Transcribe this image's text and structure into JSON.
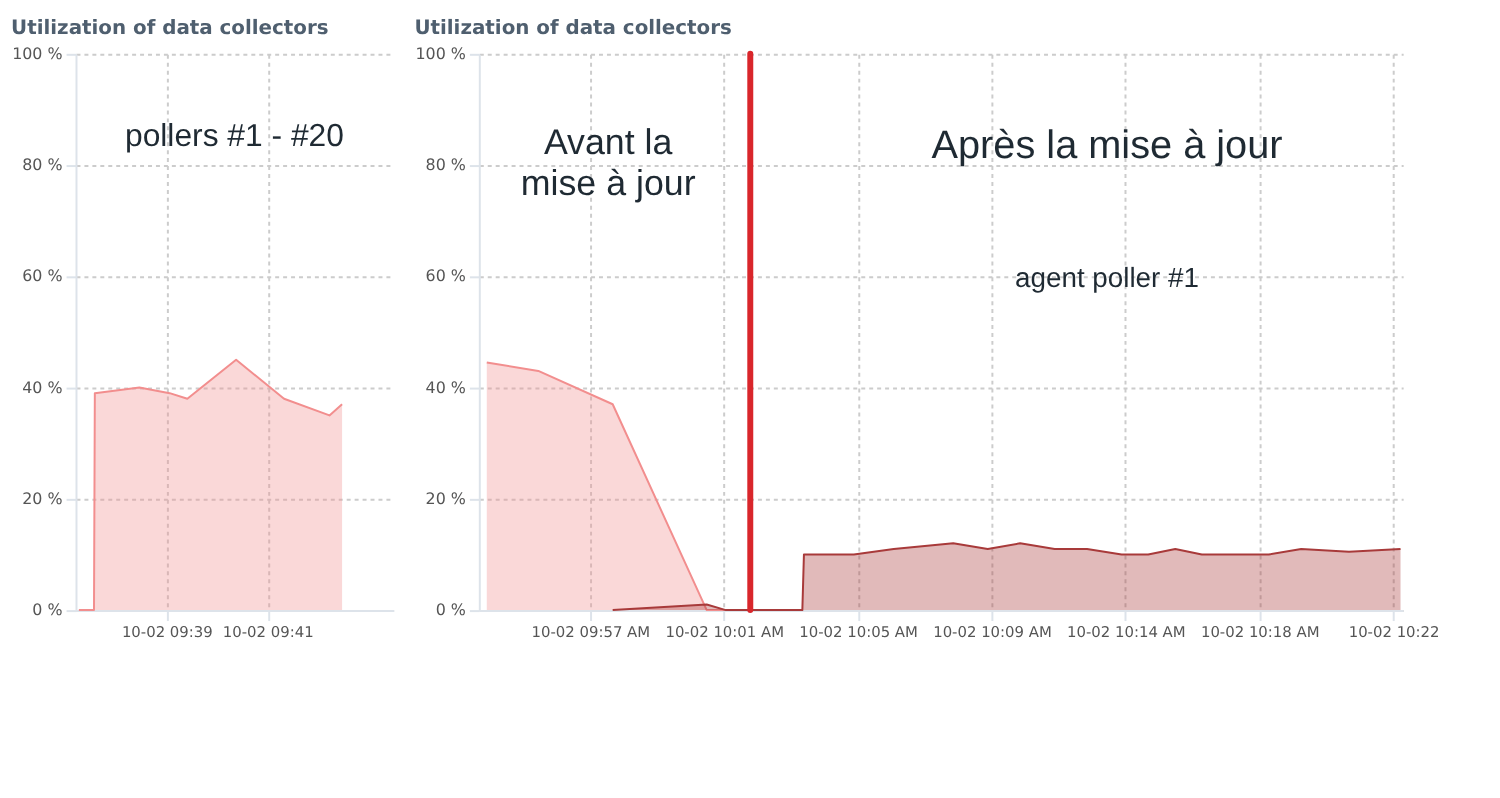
{
  "chart_data": [
    {
      "type": "area",
      "title": "Utilization of data collectors",
      "annotations": [
        "pollers #1 - #20"
      ],
      "grid": true,
      "xlim": [
        "--10-02T09:37:12",
        "--10-02T09:43:30"
      ],
      "xticks": [
        {
          "value": "--10-02T09:39",
          "label": "10-02 09:39"
        },
        {
          "value": "--10-02T09:41",
          "label": "10-02 09:41"
        }
      ],
      "ylim": [
        0,
        100
      ],
      "yticks": [
        {
          "value": 0,
          "label": "0 %"
        },
        {
          "value": 20,
          "label": "20 %"
        },
        {
          "value": 40,
          "label": "40 %"
        },
        {
          "value": 60,
          "label": "60 %"
        },
        {
          "value": 80,
          "label": "80 %"
        },
        {
          "value": 100,
          "label": "100 %"
        }
      ],
      "series": [
        {
          "color": "#f28e8e",
          "x": [
            "--10-02T09:37:16",
            "--10-02T09:37:34",
            "--10-02T09:37:35",
            "--10-02T09:38:28",
            "--10-02T09:39:04",
            "--10-02T09:39:25",
            "--10-02T09:40:23",
            "--10-02T09:41:20",
            "--10-02T09:42:14",
            "--10-02T09:42:29"
          ],
          "values": [
            0,
            0,
            39,
            40,
            39,
            38,
            45,
            38,
            35,
            37
          ]
        }
      ]
    },
    {
      "type": "area",
      "title": "Utilization of data collectors",
      "annotations": [
        "Avant la\nmise à jour",
        "Après la mise à jour",
        "agent poller #1"
      ],
      "grid": true,
      "xlim": [
        "--10-02T09:53:31",
        "--10-02T10:22:30"
      ],
      "xticks": [
        {
          "value": "--10-02T09:57",
          "label": "10-02 09:57 AM"
        },
        {
          "value": "--10-02T10:01:12",
          "label": "10-02 10:01 AM"
        },
        {
          "value": "--10-02T10:05:24",
          "label": "10-02 10:05 AM"
        },
        {
          "value": "--10-02T10:09:36",
          "label": "10-02 10:09 AM"
        },
        {
          "value": "--10-02T10:13:48",
          "label": "10-02 10:14 AM"
        },
        {
          "value": "--10-02T10:18",
          "label": "10-02 10:18 AM"
        },
        {
          "value": "--10-02T10:22:12",
          "label": "10-02 10:22"
        }
      ],
      "ylim": [
        0,
        100
      ],
      "yticks": [
        {
          "value": 0,
          "label": "0 %"
        },
        {
          "value": 20,
          "label": "20 %"
        },
        {
          "value": 40,
          "label": "40 %"
        },
        {
          "value": 60,
          "label": "60 %"
        },
        {
          "value": 80,
          "label": "80 %"
        },
        {
          "value": 100,
          "label": "100 %"
        }
      ],
      "ref_lines": [
        {
          "axis": "x",
          "value": "--10-02T10:02:02",
          "color": "#d9262b"
        }
      ],
      "series": [
        {
          "color": "#f28e8e",
          "x": [
            "--10-02T09:53:46",
            "--10-02T09:55:23",
            "--10-02T09:57:43",
            "--10-02T10:00:40",
            "--10-02T10:01:16"
          ],
          "values": [
            44.5,
            43,
            37,
            0,
            0
          ]
        },
        {
          "color": "#a83a3a",
          "x": [
            "--10-02T09:57:43",
            "--10-02T10:00:40",
            "--10-02T10:01:16",
            "--10-02T10:03:40",
            "--10-02T10:03:43",
            "--10-02T10:05:17",
            "--10-02T10:06:32",
            "--10-02T10:08:24",
            "--10-02T10:09:29",
            "--10-02T10:10:30",
            "--10-02T10:11:35",
            "--10-02T10:12:36",
            "--10-02T10:13:41",
            "--10-02T10:14:31",
            "--10-02T10:15:22",
            "--10-02T10:16:12",
            "--10-02T10:18:18",
            "--10-02T10:19:19",
            "--10-02T10:20:49",
            "--10-02T10:22:26"
          ],
          "values": [
            0,
            1,
            0,
            0,
            10,
            10,
            11,
            12,
            11,
            12,
            11,
            11,
            10,
            10,
            11,
            10,
            10,
            11,
            10.5,
            11
          ]
        }
      ]
    }
  ]
}
